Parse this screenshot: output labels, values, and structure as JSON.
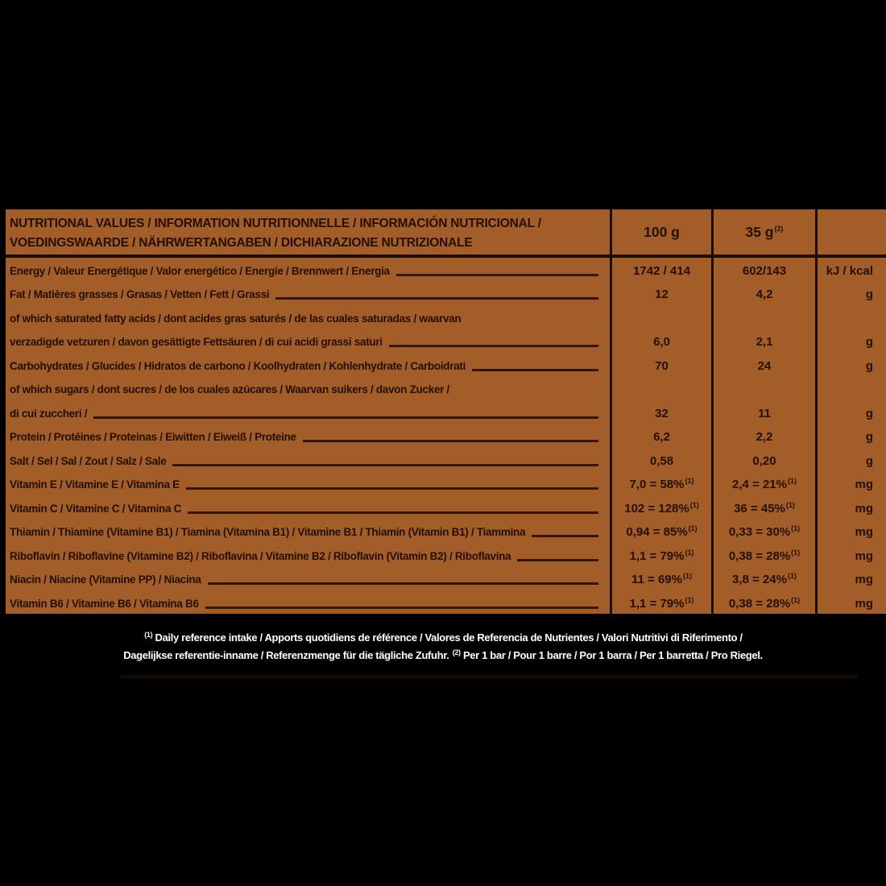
{
  "colors": {
    "background_black": "#000000",
    "panel_orange": "#a25d28",
    "text_dark": "#231003",
    "grid_line": "#1c0b00",
    "underline": "#331604",
    "footnote_white": "#ffffff"
  },
  "table": {
    "header": {
      "title_line1": "NUTRITIONAL VALUES / INFORMATION NUTRITIONNELLE / INFORMACIÓN NUTRICIONAL /",
      "title_line2": "VOEDINGSWAARDE / NÄHRWERTANGABEN / DICHIARAZIONE NUTRIZIONALE",
      "col_100g": "100 g",
      "col_35g": "35 g",
      "col_35g_sup": "(2)"
    },
    "rows": [
      {
        "id": "energy",
        "lines": [
          "Energy / Valeur Energétique / Valor energético / Energie / Brennwert / Energia"
        ],
        "v100": "1742 / 414",
        "v100_sup": "",
        "v35": "602/143",
        "v35_sup": "",
        "unit": "kJ / kcal"
      },
      {
        "id": "fat",
        "lines": [
          "Fat / Matières grasses / Grasas / Vetten / Fett / Grassi"
        ],
        "v100": "12",
        "v100_sup": "",
        "v35": "4,2",
        "v35_sup": "",
        "unit": "g"
      },
      {
        "id": "saturated-fat",
        "lines": [
          "of which saturated fatty acids / dont acides gras saturés / de las cuales saturadas / waarvan",
          "verzadigde vetzuren / davon gesättigte Fettsäuren / di cui acidi grassi saturi"
        ],
        "v100": "6,0",
        "v100_sup": "",
        "v35": "2,1",
        "v35_sup": "",
        "unit": "g"
      },
      {
        "id": "carbohydrates",
        "lines": [
          "Carbohydrates / Glucides / Hidratos de carbono / Koolhydraten / Kohlenhydrate / Carboidrati"
        ],
        "v100": "70",
        "v100_sup": "",
        "v35": "24",
        "v35_sup": "",
        "unit": "g"
      },
      {
        "id": "sugars",
        "lines": [
          "of which sugars / dont sucres / de los cuales azúcares / Waarvan suikers / davon Zucker /",
          "di cui zuccheri /"
        ],
        "v100": "32",
        "v100_sup": "",
        "v35": "11",
        "v35_sup": "",
        "unit": "g"
      },
      {
        "id": "protein",
        "lines": [
          "Protein / Protéines / Proteinas / Eiwitten / Eiweiß / Proteine"
        ],
        "v100": "6,2",
        "v100_sup": "",
        "v35": "2,2",
        "v35_sup": "",
        "unit": "g"
      },
      {
        "id": "salt",
        "lines": [
          "Salt / Sel / Sal / Zout / Salz / Sale"
        ],
        "v100": "0,58",
        "v100_sup": "",
        "v35": "0,20",
        "v35_sup": "",
        "unit": "g"
      },
      {
        "id": "vitamin-e",
        "lines": [
          "Vitamin E / Vitamine E / Vitamina E"
        ],
        "v100": "7,0 = 58%",
        "v100_sup": "(1)",
        "v35": "2,4 = 21%",
        "v35_sup": "(1)",
        "unit": "mg"
      },
      {
        "id": "vitamin-c",
        "lines": [
          "Vitamin C / Vitamine C / Vitamina C"
        ],
        "v100": "102 = 128%",
        "v100_sup": "(1)",
        "v35": "36 = 45%",
        "v35_sup": "(1)",
        "unit": "mg"
      },
      {
        "id": "thiamin",
        "lines": [
          "Thiamin / Thiamine (Vitamine B1) / Tiamina (Vitamina B1) / Vitamine B1 / Thiamin (Vitamin B1) / Tiammina"
        ],
        "v100": "0,94 = 85%",
        "v100_sup": "(1)",
        "v35": "0,33 = 30%",
        "v35_sup": "(1)",
        "unit": "mg"
      },
      {
        "id": "riboflavin",
        "lines": [
          "Riboflavin / Riboflavine (Vitamine B2) / Riboflavina / Vitamine B2 / Riboflavin (Vitamin B2) / Riboflavina"
        ],
        "v100": "1,1 = 79%",
        "v100_sup": "(1)",
        "v35": "0,38 = 28%",
        "v35_sup": "(1)",
        "unit": "mg"
      },
      {
        "id": "niacin",
        "lines": [
          "Niacin / Niacine (Vitamine PP) / Niacina"
        ],
        "v100": "11 = 69%",
        "v100_sup": "(1)",
        "v35": "3,8 = 24%",
        "v35_sup": "(1)",
        "unit": "mg"
      },
      {
        "id": "vitamin-b6",
        "lines": [
          "Vitamin B6 / Vitamine B6 / Vitamina B6"
        ],
        "v100": "1,1 = 79%",
        "v100_sup": "(1)",
        "v35": "0,38 = 28%",
        "v35_sup": "(1)",
        "unit": "mg"
      }
    ]
  },
  "footnote": {
    "line1_sup": "(1)",
    "line1_text": " Daily reference intake / Apports quotidiens de référence / Valores de Referencia de Nutrientes / Valori Nutritivi di Riferimento /",
    "line2_pre": "Dagelijkse referentie-inname / Referenzmenge für die tägliche Zufuhr. ",
    "line2_sup": "(2)",
    "line2_post": " Per 1 bar / Pour 1 barre / Por 1 barra / Per 1 barretta / Pro Riegel."
  }
}
